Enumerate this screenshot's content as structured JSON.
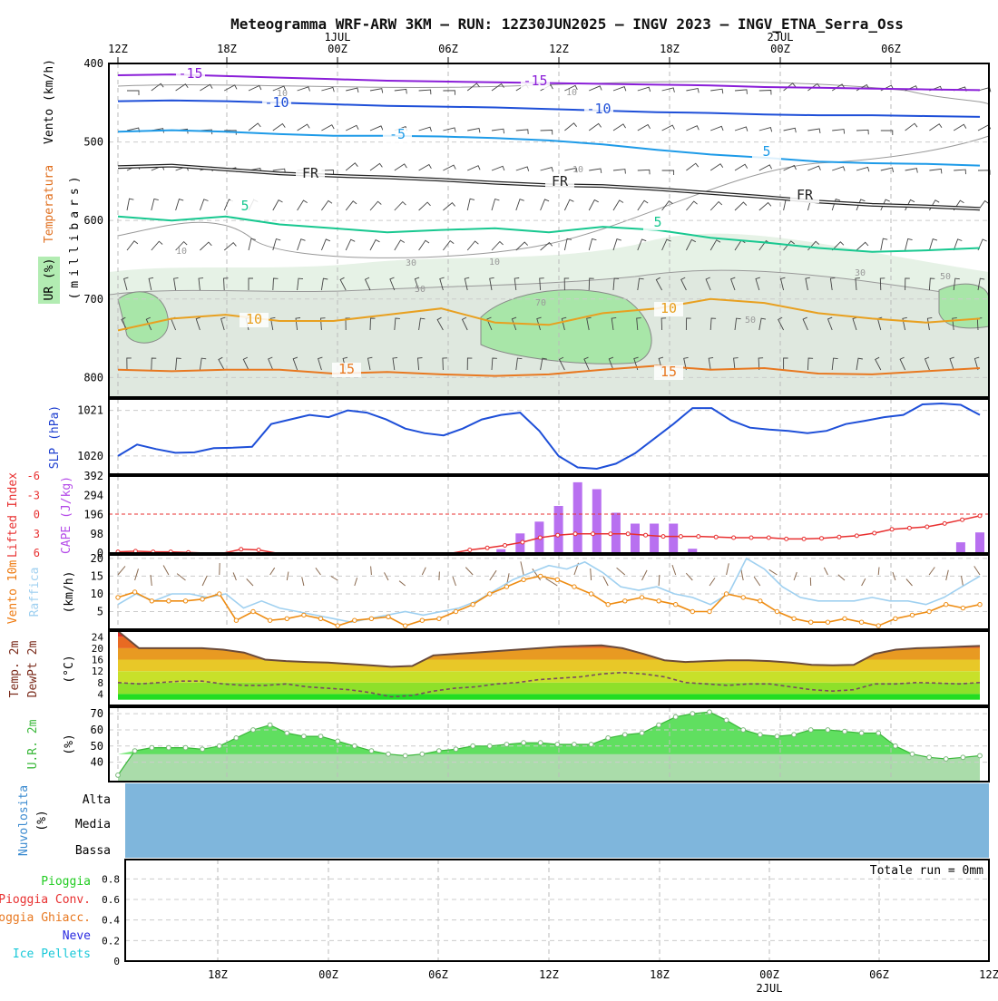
{
  "title": "Meteogramma WRF-ARW 3KM – RUN: 12Z30JUN2025 – INGV 2023 – INGV_ETNA_Serra_Oss",
  "time_axis": {
    "top_labels": [
      "12Z",
      "18Z",
      "00Z",
      "06Z",
      "12Z",
      "18Z",
      "00Z",
      "06Z"
    ],
    "top_dates": [
      "1JUL",
      "2JUL"
    ],
    "bottom_labels": [
      "18Z",
      "00Z",
      "06Z",
      "12Z",
      "18Z",
      "00Z",
      "06Z",
      "12Z"
    ],
    "bottom_dates": [
      "2JUL"
    ]
  },
  "panel_labels": {
    "upper_vento": "Vento (km/h)",
    "upper_temp": "Temperatura",
    "upper_ur": "UR (%)",
    "upper_units": "(millibars)",
    "slp": "SLP (hPa)",
    "lifted": "Lifted Index",
    "cape": "CAPE (J/kg)",
    "wind10_a": "Vento 10m",
    "wind10_b": "Raffica",
    "wind10_units": "(km/h)",
    "temp_a": "Temp. 2m",
    "temp_b": "DewPt 2m",
    "temp_units": "(°C)",
    "ur2m": "U.R. 2m",
    "ur2m_units": "(%)",
    "cloud_a": "Nuvolosita",
    "cloud_b": "(%)",
    "cloud_levels": [
      "Alta",
      "Media",
      "Bassa"
    ],
    "precip_legend": [
      "Pioggia",
      "Pioggia Conv.",
      "Pioggia Ghiacc.",
      "Neve",
      "Ice Pellets"
    ],
    "precip_total": "Totale run = 0mm"
  },
  "colors": {
    "purple": "#8a2be2",
    "blue": "#1e4fd8",
    "lightblue": "#1e9be8",
    "green": "#18c890",
    "orange": "#e8a020",
    "darkorange": "#e87820",
    "red": "#e83030",
    "cloud": "#7fb6dc",
    "grass": "#22dd22"
  },
  "chart_data": [
    {
      "type": "line",
      "name": "upper-air",
      "ylim": [
        400,
        825
      ],
      "yticks": [
        400,
        500,
        600,
        700,
        800
      ],
      "isotherm_labels": [
        "-15",
        "-15",
        "-10",
        "-10",
        "-5",
        "5",
        "FR",
        "FR",
        "FR",
        "5",
        "5",
        "10",
        "10",
        "15",
        "15"
      ],
      "rh_labels": [
        "10",
        "10",
        "10",
        "10",
        "10",
        "30",
        "30",
        "50",
        "50",
        "50",
        "70"
      ],
      "isotherms": [
        {
          "label": "-15",
          "values": [
            415,
            414,
            416,
            418,
            420,
            422,
            423,
            424,
            425,
            426,
            427,
            428,
            430,
            431,
            432,
            433,
            434
          ]
        },
        {
          "label": "-10",
          "values": [
            448,
            447,
            448,
            450,
            452,
            454,
            455,
            456,
            458,
            460,
            462,
            463,
            465,
            466,
            466,
            467,
            468
          ]
        },
        {
          "label": "-5",
          "values": [
            487,
            485,
            487,
            490,
            492,
            492,
            493,
            495,
            498,
            503,
            510,
            516,
            520,
            525,
            527,
            528,
            530
          ]
        },
        {
          "label": "FR",
          "values": [
            532,
            530,
            535,
            540,
            543,
            545,
            548,
            552,
            555,
            556,
            560,
            565,
            570,
            576,
            580,
            582,
            585
          ]
        },
        {
          "label": "5",
          "values": [
            595,
            600,
            595,
            605,
            610,
            615,
            612,
            610,
            615,
            608,
            612,
            622,
            628,
            635,
            640,
            638,
            635
          ]
        },
        {
          "label": "10",
          "values": [
            740,
            725,
            720,
            728,
            728,
            720,
            712,
            730,
            733,
            718,
            712,
            700,
            705,
            718,
            725,
            730,
            725
          ]
        },
        {
          "label": "15",
          "values": [
            790,
            792,
            790,
            790,
            795,
            793,
            796,
            798,
            796,
            790,
            785,
            790,
            788,
            795,
            796,
            792,
            788
          ]
        }
      ]
    },
    {
      "type": "line",
      "name": "slp",
      "ylim": [
        1019.6,
        1021.25
      ],
      "yticks": [
        1020,
        1021
      ],
      "values": [
        1020.0,
        1020.25,
        1020.15,
        1020.07,
        1020.08,
        1020.17,
        1020.18,
        1020.2,
        1020.7,
        1020.8,
        1020.9,
        1020.85,
        1021.0,
        1020.95,
        1020.8,
        1020.6,
        1020.5,
        1020.45,
        1020.6,
        1020.8,
        1020.9,
        1020.95,
        1020.55,
        1020.0,
        1019.75,
        1019.72,
        1019.83,
        1020.06,
        1020.38,
        1020.7,
        1021.05,
        1021.05,
        1020.78,
        1020.62,
        1020.58,
        1020.55,
        1020.5,
        1020.55,
        1020.7,
        1020.77,
        1020.85,
        1020.9,
        1021.13,
        1021.15,
        1021.12,
        1020.9
      ]
    },
    {
      "type": "bar",
      "name": "cape",
      "ylim": [
        0,
        392
      ],
      "yticks": [
        0,
        98,
        196,
        294,
        392
      ],
      "values": [
        0,
        0,
        0,
        0,
        0,
        0,
        0,
        0,
        0,
        0,
        0,
        0,
        0,
        0,
        0,
        0,
        0,
        0,
        0,
        0,
        20,
        100,
        160,
        240,
        360,
        325,
        205,
        150,
        150,
        150,
        22,
        0,
        0,
        0,
        0,
        0,
        0,
        0,
        0,
        0,
        0,
        0,
        0,
        5,
        55,
        105
      ]
    },
    {
      "type": "line",
      "name": "lifted-index",
      "ylim": [
        6,
        -6
      ],
      "yticks": [
        -6,
        -3,
        0,
        3,
        6
      ],
      "values": [
        5.8,
        5.7,
        5.8,
        5.8,
        5.9,
        6.2,
        6.4,
        5.4,
        5.5,
        6.1,
        6.4,
        6.4,
        6.6,
        6.6,
        6.6,
        6.5,
        6.4,
        6.4,
        6.3,
        6.1,
        5.5,
        5.2,
        4.8,
        4.3,
        3.6,
        3.2,
        3.0,
        3.0,
        3.0,
        3.0,
        3.2,
        3.4,
        3.4,
        3.4,
        3.5,
        3.6,
        3.6,
        3.6,
        3.8,
        3.8,
        3.7,
        3.5,
        3.3,
        2.9,
        2.3,
        2.1,
        1.9,
        1.4,
        0.8,
        0.2
      ]
    },
    {
      "type": "line",
      "name": "wind-10m",
      "ylim": [
        0,
        20
      ],
      "yticks": [
        5,
        10,
        15,
        20
      ],
      "series": [
        {
          "name": "Vento 10m",
          "values": [
            9,
            10.5,
            8,
            8,
            8,
            8.5,
            10,
            2.5,
            5,
            2.5,
            3,
            4,
            3,
            1,
            2.5,
            3,
            3.5,
            1,
            2.5,
            3,
            5,
            7,
            10,
            12,
            14,
            15,
            14,
            12,
            10,
            7,
            8,
            9,
            8,
            7,
            5,
            5,
            10,
            9,
            8,
            5,
            3,
            2,
            2,
            3,
            2,
            1,
            3,
            4,
            5,
            7,
            6,
            7
          ]
        },
        {
          "name": "Raffica",
          "values": [
            7,
            10,
            8,
            10,
            10,
            9,
            10,
            6,
            8,
            6,
            5,
            4,
            3,
            2,
            3,
            4,
            5,
            4,
            5,
            6,
            8,
            11,
            14,
            16,
            18,
            17,
            19,
            16,
            12,
            11,
            12,
            10,
            9,
            7,
            10,
            20,
            17,
            12,
            9,
            8,
            8,
            8,
            9,
            8,
            8,
            7,
            9,
            12,
            15
          ]
        }
      ]
    },
    {
      "type": "area",
      "name": "temperature-2m",
      "ylim": [
        0,
        26
      ],
      "yticks": [
        4,
        8,
        12,
        16,
        20,
        24
      ],
      "series": [
        {
          "name": "Temp. 2m",
          "values": [
            26,
            20,
            20,
            20,
            20,
            19.5,
            18.5,
            16,
            15.5,
            15.2,
            15,
            14.5,
            14,
            13.5,
            13.8,
            17.5,
            18,
            18.5,
            19,
            19.5,
            20,
            20.5,
            20.8,
            21,
            20,
            18,
            15.8,
            15.2,
            15.5,
            15.8,
            15.8,
            15.5,
            15,
            14.2,
            14,
            14.2,
            18,
            19.5,
            20,
            20.2,
            20.5,
            20.8
          ]
        },
        {
          "name": "DewPt 2m",
          "values": [
            8,
            7.5,
            8,
            8.5,
            8.5,
            7.5,
            7,
            7,
            7.5,
            6.5,
            6,
            5.5,
            4.5,
            3,
            3.5,
            5,
            6,
            6.5,
            7.5,
            8,
            9,
            9.5,
            10,
            11,
            11.5,
            11,
            10,
            8,
            7.5,
            7,
            7.5,
            7.5,
            6.5,
            5.5,
            5,
            5.5,
            7.5,
            7.5,
            8,
            7.8,
            7.5,
            8
          ]
        }
      ]
    },
    {
      "type": "area",
      "name": "rh-2m",
      "ylim": [
        28,
        74
      ],
      "yticks": [
        40,
        50,
        60,
        70
      ],
      "values": [
        32,
        47,
        49,
        49,
        49,
        48,
        50,
        55,
        60,
        63,
        58,
        56,
        56,
        53,
        50,
        47,
        45,
        44,
        45,
        47,
        48,
        50,
        50,
        51,
        52,
        52,
        51,
        51,
        51,
        55,
        57,
        58,
        63,
        68,
        70,
        71,
        66,
        60,
        57,
        56,
        57,
        60,
        60,
        59,
        58,
        58,
        50,
        45,
        43,
        42,
        43,
        44
      ]
    },
    {
      "type": "heatmap",
      "name": "cloud-cover",
      "levels": [
        "Alta",
        "Media",
        "Bassa"
      ],
      "coverage_percent": 100
    },
    {
      "type": "bar",
      "name": "precipitation",
      "ylim": [
        0,
        0.9
      ],
      "yticks": [
        0,
        0.2,
        0.4,
        0.6,
        0.8
      ],
      "values": []
    }
  ]
}
